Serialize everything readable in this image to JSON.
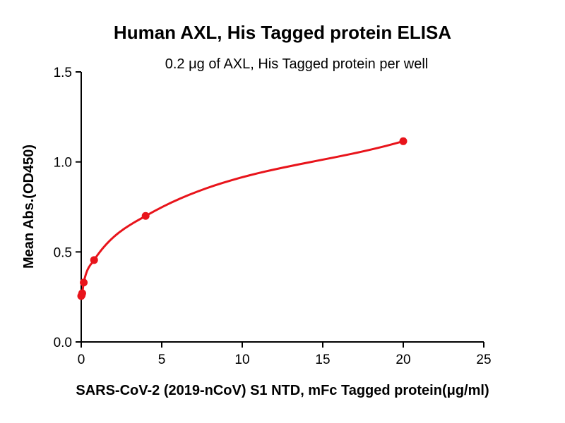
{
  "chart_data": {
    "type": "scatter",
    "title": "Human AXL, His Tagged protein ELISA",
    "subtitle": "0.2 μg of AXL, His Tagged protein per well",
    "xlabel": "SARS-CoV-2 (2019-nCoV) S1 NTD, mFc Tagged protein(μg/ml)",
    "ylabel": "Mean Abs.(OD450)",
    "xlim": [
      0,
      25
    ],
    "ylim": [
      0,
      1.5
    ],
    "x_ticks": [
      0,
      5,
      10,
      15,
      20,
      25
    ],
    "y_ticks": [
      0.0,
      0.5,
      1.0,
      1.5
    ],
    "x_tick_labels": [
      "0",
      "5",
      "10",
      "15",
      "20",
      "25"
    ],
    "y_tick_labels": [
      "0.0",
      "0.5",
      "1.0",
      "1.5"
    ],
    "grid": false,
    "legend": "none",
    "color": "#e8141b",
    "fit_curve": true,
    "series": [
      {
        "x": [
          0,
          0.0313,
          0.0625,
          0.156,
          0.8,
          4,
          20
        ],
        "y": [
          0.255,
          0.26,
          0.27,
          0.33,
          0.455,
          0.7,
          1.115
        ]
      }
    ]
  }
}
